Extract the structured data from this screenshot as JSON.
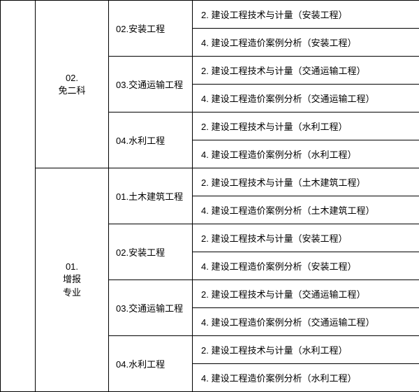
{
  "table": {
    "levels": [
      {
        "code": "02.",
        "name": "免二科",
        "specs": [
          {
            "code": "02.",
            "name": "安装工程",
            "subjects": [
              "2. 建设工程技术与计量（安装工程）",
              "4. 建设工程造价案例分析（安装工程）"
            ]
          },
          {
            "code": "03.",
            "name": "交通运输工程",
            "subjects": [
              "2. 建设工程技术与计量（交通运输工程）",
              "4. 建设工程造价案例分析（交通运输工程）"
            ]
          },
          {
            "code": "04.",
            "name": "水利工程",
            "subjects": [
              "2. 建设工程技术与计量（水利工程）",
              "4. 建设工程造价案例分析（水利工程）"
            ]
          }
        ]
      },
      {
        "code": "01.",
        "name": "增报专业",
        "specs": [
          {
            "code": "01.",
            "name": "土木建筑工程",
            "subjects": [
              "2. 建设工程技术与计量（土木建筑工程）",
              "4. 建设工程造价案例分析（土木建筑工程）"
            ]
          },
          {
            "code": "02.",
            "name": "安装工程",
            "subjects": [
              "2. 建设工程技术与计量（安装工程）",
              "4. 建设工程造价案例分析（安装工程）"
            ]
          },
          {
            "code": "03.",
            "name": "交通运输工程",
            "subjects": [
              "2. 建设工程技术与计量（交通运输工程）",
              "4. 建设工程造价案例分析（交通运输工程）"
            ]
          },
          {
            "code": "04.",
            "name": "水利工程",
            "subjects": [
              "2. 建设工程技术与计量（水利工程）",
              "4. 建设工程造价案例分析（水利工程）"
            ]
          }
        ]
      }
    ]
  },
  "colors": {
    "border": "#000000",
    "text": "#000000",
    "background": "#ffffff"
  }
}
